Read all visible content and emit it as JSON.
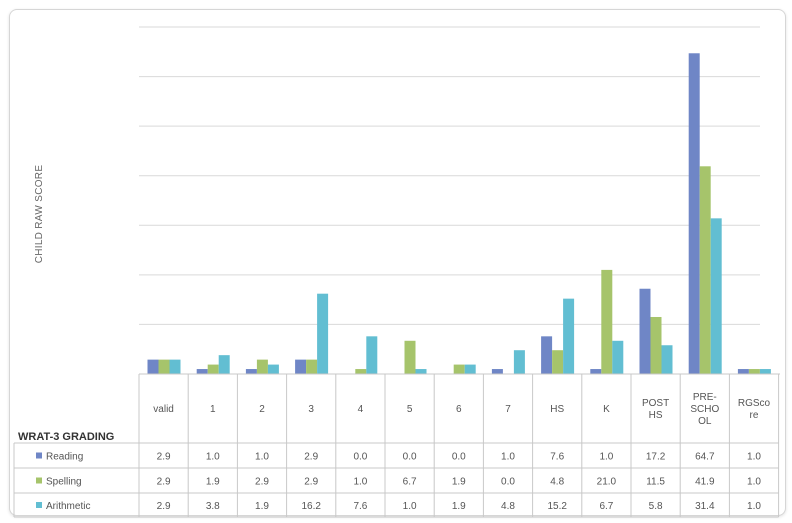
{
  "chart_data": {
    "type": "bar",
    "title": "",
    "ylabel": "CHILD RAW SCORE",
    "xlabel": "WRAT-3 GRADING",
    "categories": [
      [
        "valid"
      ],
      [
        "1"
      ],
      [
        "2"
      ],
      [
        "3"
      ],
      [
        "4"
      ],
      [
        "5"
      ],
      [
        "6"
      ],
      [
        "7"
      ],
      [
        "HS"
      ],
      [
        "K"
      ],
      [
        "POST",
        "HS"
      ],
      [
        "PRE-",
        "SCHO",
        "OL"
      ],
      [
        "RGSco",
        "re"
      ]
    ],
    "category_names": [
      "valid",
      "1",
      "2",
      "3",
      "4",
      "5",
      "6",
      "7",
      "HS",
      "K",
      "POST HS",
      "PRE-SCHOOL",
      "RGScore"
    ],
    "ylim": [
      0,
      70
    ],
    "grid": true,
    "legend": "table-left",
    "series": [
      {
        "name": "Reading",
        "color": "#6f86c6",
        "values": [
          2.9,
          1.0,
          1.0,
          2.9,
          0.0,
          0.0,
          0.0,
          1.0,
          7.6,
          1.0,
          17.2,
          64.7,
          1.0
        ],
        "labels": [
          "2.9",
          "1.0",
          "1.0",
          "2.9",
          "0.0",
          "0.0",
          "0.0",
          "1.0",
          "7.6",
          "1.0",
          "17.2",
          "64.7",
          "1.0"
        ]
      },
      {
        "name": "Spelling",
        "color": "#a6c46b",
        "values": [
          2.9,
          1.9,
          2.9,
          2.9,
          1.0,
          6.7,
          1.9,
          0.0,
          4.8,
          21.0,
          11.5,
          41.9,
          1.0
        ],
        "labels": [
          "2.9",
          "1.9",
          "2.9",
          "2.9",
          "1.0",
          "6.7",
          "1.9",
          "0.0",
          "4.8",
          "21.0",
          "11.5",
          "41.9",
          "1.0"
        ]
      },
      {
        "name": "Arithmetic",
        "color": "#62bed2",
        "values": [
          2.9,
          3.8,
          1.9,
          16.2,
          7.6,
          1.0,
          1.9,
          4.8,
          15.2,
          6.7,
          5.8,
          31.4,
          1.0
        ],
        "labels": [
          "2.9",
          "3.8",
          "1.9",
          "16.2",
          "7.6",
          "1.0",
          "1.9",
          "4.8",
          "15.2",
          "6.7",
          "5.8",
          "31.4",
          "1.0"
        ]
      }
    ]
  }
}
